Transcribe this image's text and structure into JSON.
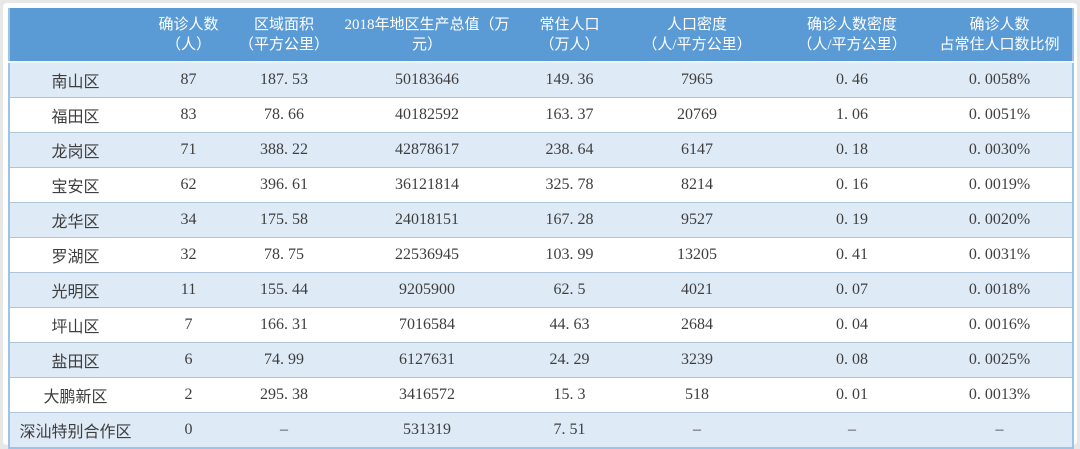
{
  "colors": {
    "header_bg": "#5b9bd5",
    "header_text": "#ffffff",
    "stripe_row_bg": "#deeaf6",
    "plain_row_bg": "#ffffff",
    "body_text": "#3e3e3e",
    "border": "#9dc3e6"
  },
  "table": {
    "columns": [
      {
        "label": ""
      },
      {
        "label": "确诊人数\n（人）"
      },
      {
        "label": "区域面积\n（平方公里）"
      },
      {
        "label": "2018年地区生产总值（万\n元）"
      },
      {
        "label": "常住人口\n（万人）"
      },
      {
        "label": "人口密度\n（人/平方公里）"
      },
      {
        "label": "确诊人数密度\n（人/平方公里）"
      },
      {
        "label": "确诊人数\n占常住人口数比例"
      }
    ],
    "rows": [
      [
        "南山区",
        "87",
        "187. 53",
        "50183646",
        "149. 36",
        "7965",
        "0. 46",
        "0. 0058%"
      ],
      [
        "福田区",
        "83",
        "78. 66",
        "40182592",
        "163. 37",
        "20769",
        "1. 06",
        "0. 0051%"
      ],
      [
        "龙岗区",
        "71",
        "388. 22",
        "42878617",
        "238. 64",
        "6147",
        "0. 18",
        "0. 0030%"
      ],
      [
        "宝安区",
        "62",
        "396. 61",
        "36121814",
        "325. 78",
        "8214",
        "0. 16",
        "0. 0019%"
      ],
      [
        "龙华区",
        "34",
        "175. 58",
        "24018151",
        "167. 28",
        "9527",
        "0. 19",
        "0. 0020%"
      ],
      [
        "罗湖区",
        "32",
        "78. 75",
        "22536945",
        "103. 99",
        "13205",
        "0. 41",
        "0. 0031%"
      ],
      [
        "光明区",
        "11",
        "155. 44",
        "9205900",
        "62. 5",
        "4021",
        "0. 07",
        "0. 0018%"
      ],
      [
        "坪山区",
        "7",
        "166. 31",
        "7016584",
        "44. 63",
        "2684",
        "0. 04",
        "0. 0016%"
      ],
      [
        "盐田区",
        "6",
        "74. 99",
        "6127631",
        "24. 29",
        "3239",
        "0. 08",
        "0. 0025%"
      ],
      [
        "大鹏新区",
        "2",
        "295. 38",
        "3416572",
        "15. 3",
        "518",
        "0. 01",
        "0. 0013%"
      ],
      [
        "深汕特别合作区",
        "0",
        "–",
        "531319",
        "7. 51",
        "–",
        "–",
        "–"
      ]
    ]
  },
  "chart_data": {
    "type": "table",
    "title": "",
    "columns": [
      "区域",
      "确诊人数（人）",
      "区域面积（平方公里）",
      "2018年地区生产总值（万元）",
      "常住人口（万人）",
      "人口密度（人/平方公里）",
      "确诊人数密度（人/平方公里）",
      "确诊人数占常住人口数比例"
    ],
    "rows": [
      [
        "南山区",
        87,
        187.53,
        50183646,
        149.36,
        7965,
        0.46,
        "0.0058%"
      ],
      [
        "福田区",
        83,
        78.66,
        40182592,
        163.37,
        20769,
        1.06,
        "0.0051%"
      ],
      [
        "龙岗区",
        71,
        388.22,
        42878617,
        238.64,
        6147,
        0.18,
        "0.0030%"
      ],
      [
        "宝安区",
        62,
        396.61,
        36121814,
        325.78,
        8214,
        0.16,
        "0.0019%"
      ],
      [
        "龙华区",
        34,
        175.58,
        24018151,
        167.28,
        9527,
        0.19,
        "0.0020%"
      ],
      [
        "罗湖区",
        32,
        78.75,
        22536945,
        103.99,
        13205,
        0.41,
        "0.0031%"
      ],
      [
        "光明区",
        11,
        155.44,
        9205900,
        62.5,
        4021,
        0.07,
        "0.0018%"
      ],
      [
        "坪山区",
        7,
        166.31,
        7016584,
        44.63,
        2684,
        0.04,
        "0.0016%"
      ],
      [
        "盐田区",
        6,
        74.99,
        6127631,
        24.29,
        3239,
        0.08,
        "0.0025%"
      ],
      [
        "大鹏新区",
        2,
        295.38,
        3416572,
        15.3,
        518,
        0.01,
        "0.0013%"
      ],
      [
        "深汕特别合作区",
        0,
        null,
        531319,
        7.51,
        null,
        null,
        null
      ]
    ]
  }
}
